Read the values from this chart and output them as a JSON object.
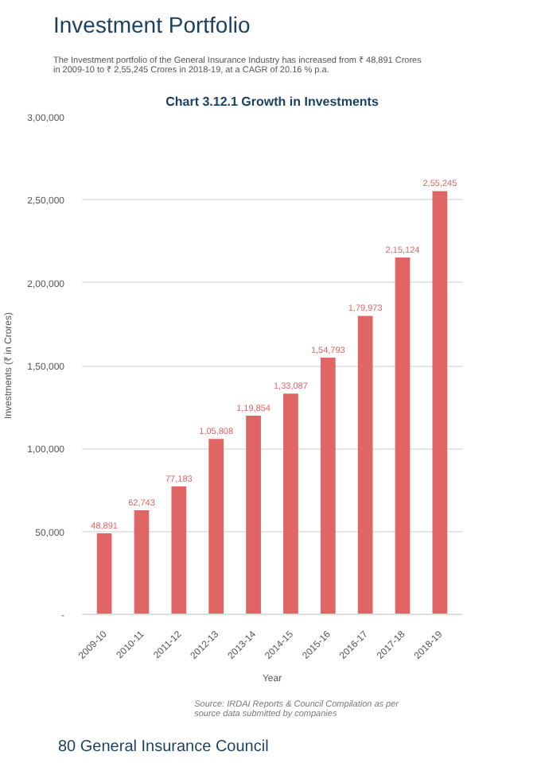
{
  "chart_data": {
    "type": "bar",
    "title": "Investment Portfolio",
    "subtitle": "The Investment portfolio of the General Insurance Industry has increased from ₹ 48,891 Crores in 2009-10 to ₹ 2,55,245 Crores in 2018-19, at a CAGR of 20.16 % p.a.",
    "annotations": [
      "Chart 3.12.1 Growth in Investments",
      "Source: IRDAI Reports & Council Compilation as per source data submitted by companies",
      "80 General Insurance Council"
    ],
    "xlabel": "Year",
    "ylabel": "Investments (₹ in Crores)",
    "categories": [
      "2009-10",
      "2010-11",
      "2011-12",
      "2012-13",
      "2013-14",
      "2014-15",
      "2015-16",
      "2016-17",
      "2017-18",
      "2018-19"
    ],
    "values": [
      48891,
      62743,
      77183,
      105808,
      119854,
      133087,
      154793,
      179973,
      215124,
      255245
    ],
    "value_labels": [
      "48,891",
      "62,743",
      "77,183",
      "1,05,808",
      "1,19,854",
      "1,33,087",
      "1,54,793",
      "1,79,973",
      "2,15,124",
      "2,55,245"
    ],
    "color": "#e06666",
    "ylim": [
      0,
      300000
    ],
    "yticks": [
      {
        "value": 0,
        "label": "-"
      },
      {
        "value": 50000,
        "label": "50,000"
      },
      {
        "value": 100000,
        "label": "1,00,000"
      },
      {
        "value": 150000,
        "label": "1,50,000"
      },
      {
        "value": 200000,
        "label": "2,00,000"
      },
      {
        "value": 250000,
        "label": "2,50,000"
      },
      {
        "value": 300000,
        "label": "3,00,000"
      }
    ],
    "grid": "y"
  }
}
